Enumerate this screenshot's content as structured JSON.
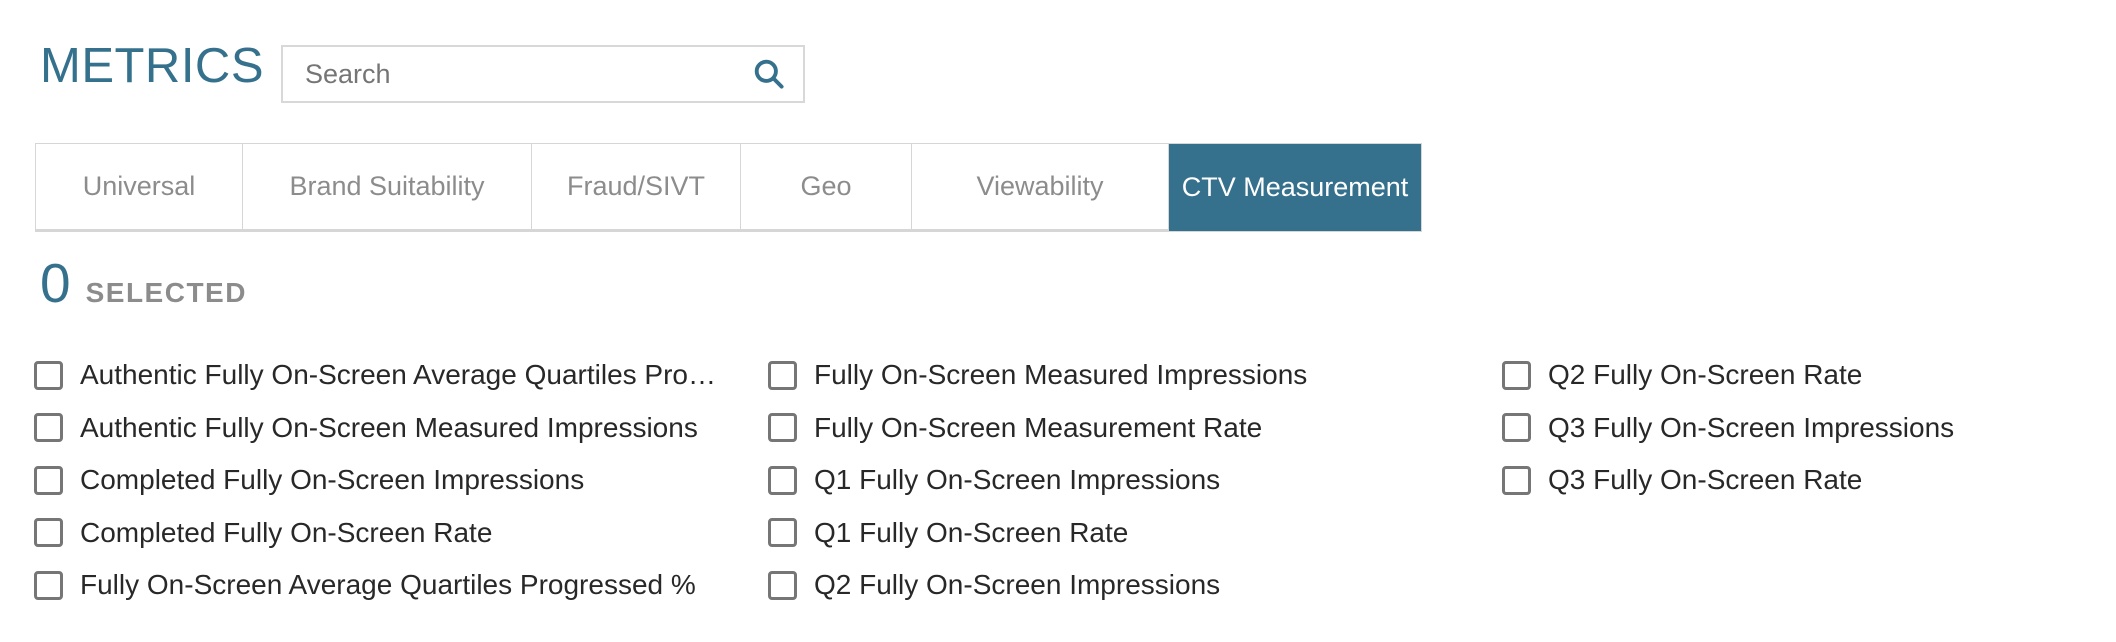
{
  "header": {
    "title": "METRICS",
    "search_placeholder": "Search",
    "search_value": ""
  },
  "tabs": [
    {
      "label": "Universal",
      "selected": false
    },
    {
      "label": "Brand Suitability",
      "selected": false
    },
    {
      "label": "Fraud/SIVT",
      "selected": false
    },
    {
      "label": "Geo",
      "selected": false
    },
    {
      "label": "Viewability",
      "selected": false
    },
    {
      "label": "CTV Measurement",
      "selected": true
    }
  ],
  "selection": {
    "count": "0",
    "label": "SELECTED"
  },
  "metrics": {
    "columns": [
      {
        "items": [
          {
            "label": "Authentic Fully On-Screen Average Quartiles Pro…",
            "checked": false
          },
          {
            "label": "Authentic Fully On-Screen Measured Impressions",
            "checked": false
          },
          {
            "label": "Completed Fully On-Screen Impressions",
            "checked": false
          },
          {
            "label": "Completed Fully On-Screen Rate",
            "checked": false
          },
          {
            "label": "Fully On-Screen Average Quartiles Progressed %",
            "checked": false
          }
        ]
      },
      {
        "items": [
          {
            "label": "Fully On-Screen Measured Impressions",
            "checked": false
          },
          {
            "label": "Fully On-Screen Measurement Rate",
            "checked": false
          },
          {
            "label": "Q1 Fully On-Screen Impressions",
            "checked": false
          },
          {
            "label": "Q1 Fully On-Screen Rate",
            "checked": false
          },
          {
            "label": "Q2 Fully On-Screen Impressions",
            "checked": false
          }
        ]
      },
      {
        "items": [
          {
            "label": "Q2 Fully On-Screen Rate",
            "checked": false
          },
          {
            "label": "Q3 Fully On-Screen Impressions",
            "checked": false
          },
          {
            "label": "Q3 Fully On-Screen Rate",
            "checked": false
          }
        ]
      }
    ]
  },
  "colors": {
    "accent": "#35718d",
    "tab_border": "#d6d6d6",
    "tab_text": "#8c8c8c",
    "checkbox_border": "#767676",
    "item_text": "#282828"
  }
}
